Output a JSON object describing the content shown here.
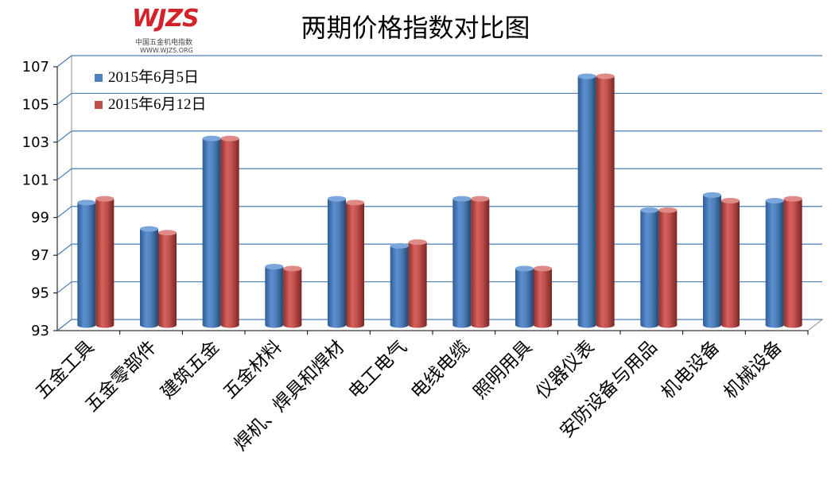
{
  "logo": {
    "mark": "WJZS",
    "subtitle": "中国五金机电指数",
    "url": "WWW.WJZS.ORG"
  },
  "chart_data": {
    "type": "bar",
    "title": "两期价格指数对比图",
    "categories": [
      "五金工具",
      "五金零部件",
      "建筑五金",
      "五金材料",
      "焊机、焊具和焊材",
      "电工电气",
      "电线电缆",
      "照明用具",
      "仪器仪表",
      "安防设备与用品",
      "机电设备",
      "机械设备"
    ],
    "series": [
      {
        "name": "2015年6月5日",
        "color": "#4f81bd",
        "values": [
          99.5,
          98.1,
          102.9,
          96.1,
          99.7,
          97.2,
          99.7,
          96.0,
          106.2,
          99.1,
          99.9,
          99.6
        ]
      },
      {
        "name": "2015年6月12日",
        "color": "#c0504d",
        "values": [
          99.7,
          97.9,
          102.9,
          96.0,
          99.5,
          97.4,
          99.7,
          96.0,
          106.2,
          99.1,
          99.6,
          99.7
        ]
      }
    ],
    "ylim": [
      93,
      107
    ],
    "yticks": [
      "93",
      "95",
      "97",
      "99",
      "101",
      "103",
      "105",
      "107"
    ],
    "xlabel": "",
    "ylabel": "",
    "legend_position": "top-left",
    "grid": true
  }
}
